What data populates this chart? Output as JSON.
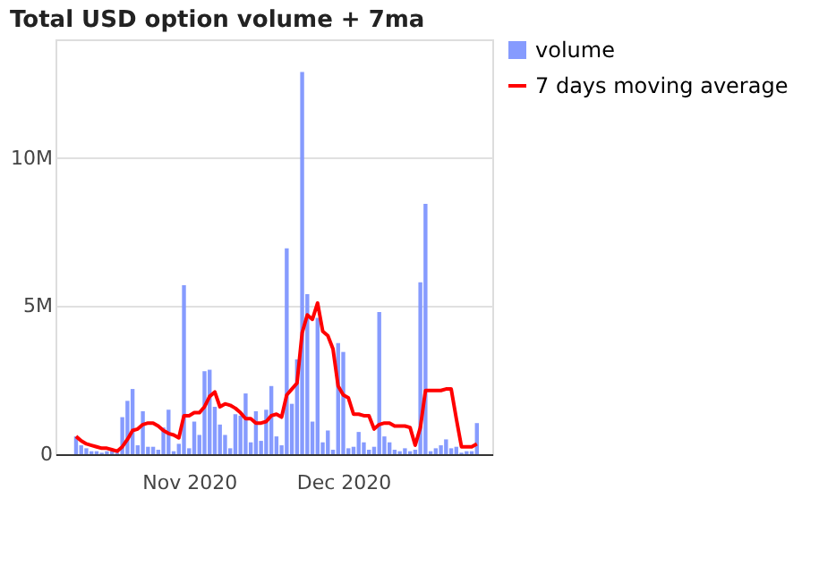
{
  "chart_data": {
    "type": "bar",
    "title": "Total USD option volume + 7ma",
    "x": [
      "2020-10-10",
      "2020-10-11",
      "2020-10-12",
      "2020-10-13",
      "2020-10-14",
      "2020-10-15",
      "2020-10-16",
      "2020-10-17",
      "2020-10-18",
      "2020-10-19",
      "2020-10-20",
      "2020-10-21",
      "2020-10-22",
      "2020-10-23",
      "2020-10-24",
      "2020-10-25",
      "2020-10-26",
      "2020-10-27",
      "2020-10-28",
      "2020-10-29",
      "2020-10-30",
      "2020-10-31",
      "2020-11-01",
      "2020-11-02",
      "2020-11-03",
      "2020-11-04",
      "2020-11-05",
      "2020-11-06",
      "2020-11-07",
      "2020-11-08",
      "2020-11-09",
      "2020-11-10",
      "2020-11-11",
      "2020-11-12",
      "2020-11-13",
      "2020-11-14",
      "2020-11-15",
      "2020-11-16",
      "2020-11-17",
      "2020-11-18",
      "2020-11-19",
      "2020-11-20",
      "2020-11-21",
      "2020-11-22",
      "2020-11-23",
      "2020-11-24",
      "2020-11-25",
      "2020-11-26",
      "2020-11-27",
      "2020-11-28",
      "2020-11-29",
      "2020-11-30",
      "2020-12-01",
      "2020-12-02",
      "2020-12-03",
      "2020-12-04",
      "2020-12-05",
      "2020-12-06",
      "2020-12-07",
      "2020-12-08",
      "2020-12-09",
      "2020-12-10",
      "2020-12-11",
      "2020-12-12",
      "2020-12-13",
      "2020-12-14",
      "2020-12-15",
      "2020-12-16",
      "2020-12-17",
      "2020-12-18",
      "2020-12-19",
      "2020-12-20",
      "2020-12-21",
      "2020-12-22",
      "2020-12-23",
      "2020-12-24",
      "2020-12-25",
      "2020-12-26",
      "2020-12-27"
    ],
    "series": [
      {
        "name": "volume",
        "color": "#7f96fe",
        "values": [
          0.6,
          0.3,
          0.2,
          0.1,
          0.1,
          0.05,
          0.1,
          0.1,
          0.05,
          1.25,
          1.8,
          2.2,
          0.3,
          1.45,
          0.25,
          0.25,
          0.15,
          0.9,
          1.5,
          0.1,
          0.35,
          5.7,
          0.2,
          1.1,
          0.65,
          2.8,
          2.85,
          1.6,
          1.0,
          0.65,
          0.2,
          1.35,
          1.3,
          2.05,
          0.4,
          1.45,
          0.45,
          1.5,
          2.3,
          0.6,
          0.3,
          6.95,
          1.7,
          3.2,
          12.9,
          5.4,
          1.1,
          4.6,
          0.4,
          0.8,
          0.15,
          3.75,
          3.45,
          0.2,
          0.25,
          0.75,
          0.4,
          0.15,
          0.25,
          4.8,
          0.6,
          0.4,
          0.15,
          0.1,
          0.2,
          0.1,
          0.15,
          5.8,
          8.45,
          0.1,
          0.2,
          0.3,
          0.5,
          0.2,
          0.25,
          0.05,
          0.1,
          0.1,
          1.05
        ]
      },
      {
        "name": "7 days moving average",
        "type": "line",
        "color": "#ff0000",
        "values": [
          0.6,
          0.45,
          0.35,
          0.3,
          0.25,
          0.2,
          0.2,
          0.15,
          0.1,
          0.25,
          0.5,
          0.8,
          0.85,
          1.0,
          1.05,
          1.05,
          0.95,
          0.8,
          0.7,
          0.65,
          0.55,
          1.3,
          1.3,
          1.4,
          1.4,
          1.6,
          1.95,
          2.1,
          1.6,
          1.7,
          1.65,
          1.55,
          1.4,
          1.2,
          1.2,
          1.05,
          1.05,
          1.1,
          1.3,
          1.35,
          1.25,
          2.0,
          2.2,
          2.4,
          4.1,
          4.7,
          4.55,
          5.1,
          4.15,
          4.0,
          3.55,
          2.3,
          2.0,
          1.9,
          1.35,
          1.35,
          1.3,
          1.3,
          0.85,
          1.0,
          1.05,
          1.05,
          0.95,
          0.95,
          0.95,
          0.9,
          0.3,
          0.9,
          2.15,
          2.15,
          2.15,
          2.15,
          2.2,
          2.2,
          1.2,
          0.25,
          0.25,
          0.25,
          0.35
        ]
      }
    ],
    "xlim": [
      "2020-10-06",
      "2020-12-30"
    ],
    "xticks": [
      {
        "value": "2020-11-01",
        "label": "Nov 2020"
      },
      {
        "value": "2020-12-01",
        "label": "Dec 2020"
      }
    ],
    "ylim": [
      0,
      14
    ],
    "yticks": [
      0,
      {
        "value": 5,
        "label": "5M"
      },
      {
        "value": 10,
        "label": "10M"
      }
    ],
    "grid": "y",
    "legend": "top right",
    "line_style": "solid",
    "marker": "none"
  }
}
